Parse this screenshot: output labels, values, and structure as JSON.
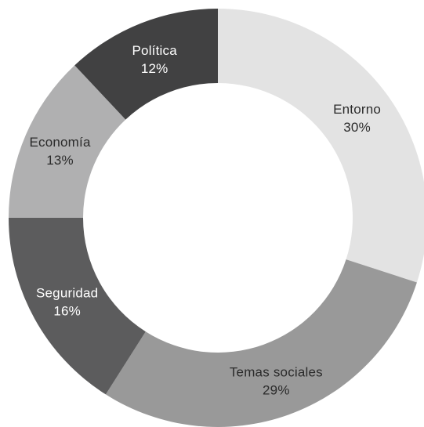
{
  "chart_data": {
    "type": "pie",
    "donut": true,
    "title": "",
    "categories": [
      "Entorno",
      "Temas sociales",
      "Seguridad",
      "Economía",
      "Política"
    ],
    "values": [
      30,
      29,
      16,
      13,
      12
    ],
    "value_labels": [
      "30%",
      "29%",
      "16%",
      "13%",
      "12%"
    ],
    "colors": [
      "#e3e3e3",
      "#999999",
      "#5c5c5d",
      "#b0b0b1",
      "#414142"
    ],
    "label_colors": [
      "#2b2b2b",
      "#2b2b2b",
      "#ffffff",
      "#2b2b2b",
      "#ffffff"
    ],
    "start_angle_deg": 0,
    "direction": "clockwise",
    "legend": "none"
  }
}
